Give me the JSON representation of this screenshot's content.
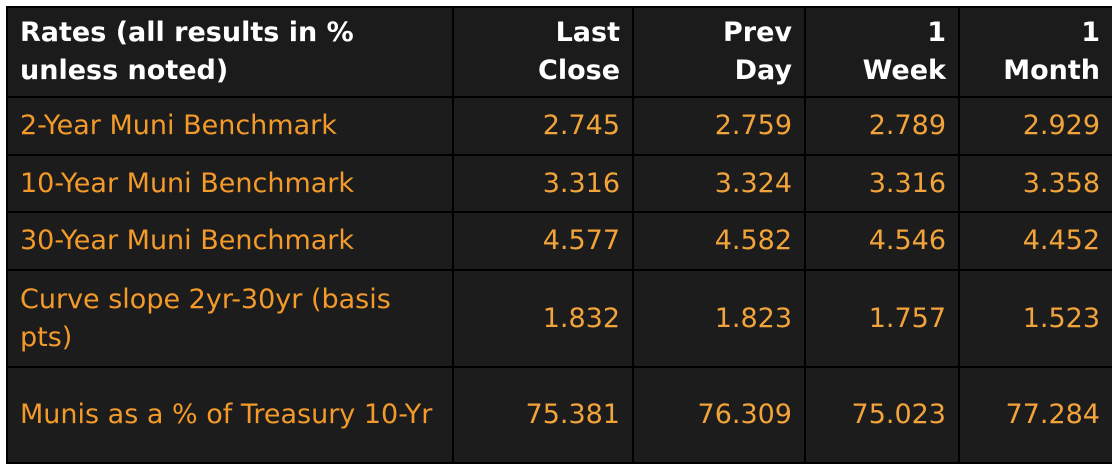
{
  "table": {
    "header": [
      "Rates (all results in % unless noted)",
      "Last Close",
      "Prev Day",
      "1 Week",
      "1 Month"
    ],
    "rows": [
      [
        "2-Year Muni Benchmark",
        "2.745",
        "2.759",
        "2.789",
        "2.929"
      ],
      [
        "10-Year Muni Benchmark",
        "3.316",
        "3.324",
        "3.316",
        "3.358"
      ],
      [
        "30-Year Muni Benchmark",
        "4.577",
        "4.582",
        "4.546",
        "4.452"
      ],
      [
        "Curve slope 2yr-30yr (basis pts)",
        "1.832",
        "1.823",
        "1.757",
        "1.523"
      ],
      [
        "Munis as a % of Treasury 10-Yr",
        "75.381",
        "76.309",
        "75.023",
        "77.284"
      ]
    ]
  }
}
